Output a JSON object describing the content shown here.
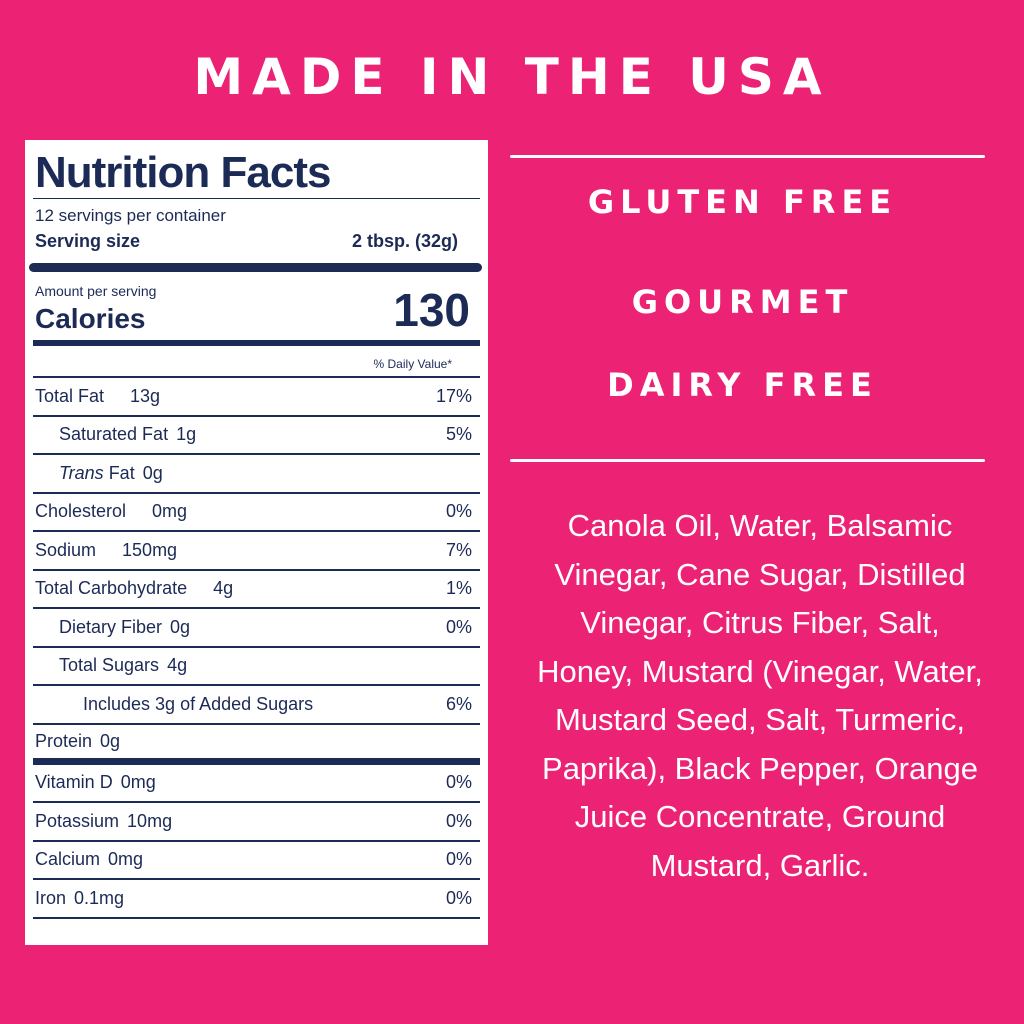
{
  "header": {
    "title": "MADE IN THE USA"
  },
  "nutrition": {
    "title": "Nutrition Facts",
    "servings": "12 servings per container",
    "serving_size_label": "Serving size",
    "serving_size": "2 tbsp. (32g)",
    "amount_label": "Amount per serving",
    "calories_label": "Calories",
    "calories": "130",
    "dv_header": "% Daily Value*",
    "rows": [
      {
        "name": "Total Fat",
        "amount": "13g",
        "dv": "17%",
        "indent": 0
      },
      {
        "name": "Saturated Fat",
        "amount": "1g",
        "dv": "5%",
        "indent": 1
      },
      {
        "name_italic": "Trans",
        "name": "Fat",
        "amount": "0g",
        "indent": 1
      },
      {
        "name": "Cholesterol",
        "amount": "0mg",
        "dv": "0%",
        "indent": 0
      },
      {
        "name": "Sodium",
        "amount": "150mg",
        "dv": "7%",
        "indent": 0
      },
      {
        "name": "Total Carbohydrate",
        "amount": "4g",
        "dv": "1%",
        "indent": 0
      },
      {
        "name": "Dietary Fiber",
        "amount": "0g",
        "dv": "0%",
        "indent": 1
      },
      {
        "name": "Total Sugars",
        "amount": "4g",
        "indent": 1
      },
      {
        "name": "Includes 3g of Added Sugars",
        "dv": "6%",
        "indent": 2
      },
      {
        "name": "Protein",
        "amount": "0g",
        "indent": 0,
        "divider": "thick"
      },
      {
        "name": "Vitamin D",
        "amount": "0mg",
        "dv": "0%",
        "indent": 0
      },
      {
        "name": "Potassium",
        "amount": "10mg",
        "dv": "0%",
        "indent": 0
      },
      {
        "name": "Calcium",
        "amount": "0mg",
        "dv": "0%",
        "indent": 0
      },
      {
        "name": "Iron",
        "amount": "0.1mg",
        "dv": "0%",
        "indent": 0
      }
    ]
  },
  "claims": [
    "GLUTEN FREE",
    "GOURMET",
    "DAIRY FREE"
  ],
  "ingredients": [
    "Canola Oil, Water, Balsamic",
    "Vinegar, Cane Sugar, Distilled",
    "Vinegar, Citrus Fiber, Salt,",
    "Honey, Mustard (Vinegar, Water,",
    "Mustard Seed, Salt, Turmeric,",
    "Paprika), Black Pepper, Orange",
    "Juice Concentrate, Ground",
    "Mustard, Garlic."
  ]
}
